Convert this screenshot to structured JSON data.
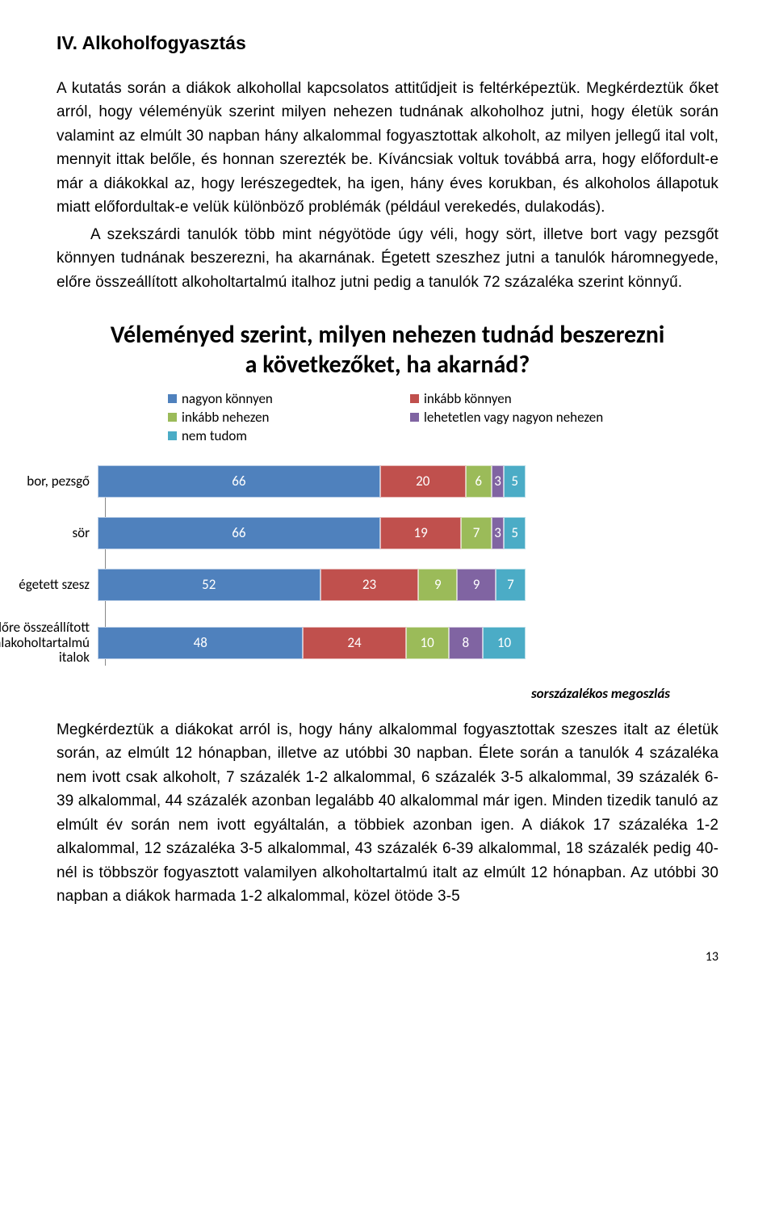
{
  "section_title": "IV. Alkoholfogyasztás",
  "paragraphs": {
    "p1": "A kutatás során a diákok alkohollal kapcsolatos attitűdjeit is feltérképeztük. Megkérdeztük őket arról, hogy véleményük szerint milyen nehezen tudnának alkoholhoz jutni, hogy életük során valamint az elmúlt 30 napban hány alkalommal fogyasztottak alkoholt, az milyen jellegű ital volt, mennyit ittak belőle, és honnan szerezték be. Kíváncsiak voltuk továbbá arra, hogy előfordult-e már a diákokkal az, hogy lerészegedtek, ha igen, hány éves korukban, és alkoholos állapotuk miatt előfordultak-e velük különböző problémák (például verekedés, dulakodás).",
    "p2": "A szekszárdi tanulók több mint négyötöde úgy véli, hogy sört, illetve bort vagy pezsgőt könnyen tudnának beszerezni, ha akarnának. Égetett szeszhez jutni a tanulók háromnegyede, előre összeállított alkoholtartalmú italhoz jutni pedig a tanulók 72 százaléka szerint könnyű.",
    "p3": "Megkérdeztük a diákokat arról is, hogy hány alkalommal fogyasztottak szeszes italt az életük során, az elmúlt 12 hónapban, illetve az utóbbi 30 napban. Élete során a tanulók 4 százaléka nem ivott csak alkoholt, 7 százalék 1-2 alkalommal, 6 százalék 3-5 alkalommal, 39 százalék 6-39 alkalommal, 44 százalék azonban legalább 40 alkalommal már igen. Minden tizedik tanuló az elmúlt év során nem ivott egyáltalán, a többiek azonban igen. A diákok 17 százaléka 1-2 alkalommal, 12 százaléka 3-5 alkalommal, 43 százalék 6-39 alkalommal, 18 százalék pedig 40-nél is többször fogyasztott valamilyen alkoholtartalmú italt az elmúlt 12 hónapban. Az utóbbi 30 napban a diákok harmada 1-2 alkalommal, közel ötöde 3-5"
  },
  "chart": {
    "type": "stacked-bar-horizontal",
    "title": "Véleményed szerint, milyen nehezen tudnád beszerezni a következőket, ha akarnád?",
    "legend": [
      {
        "label": "nagyon könnyen",
        "color": "#4f81bd"
      },
      {
        "label": "inkább könnyen",
        "color": "#c0504d"
      },
      {
        "label": "inkább nehezen",
        "color": "#9bbb59"
      },
      {
        "label": "lehetetlen vagy nagyon nehezen",
        "color": "#8064a2"
      },
      {
        "label": "nem tudom",
        "color": "#4bacc6"
      }
    ],
    "categories": [
      {
        "label": "bor, pezsgő",
        "values": [
          66,
          20,
          6,
          3,
          5
        ]
      },
      {
        "label": "sör",
        "values": [
          66,
          19,
          7,
          3,
          5
        ]
      },
      {
        "label": "égetett szesz",
        "values": [
          52,
          23,
          9,
          9,
          7
        ]
      },
      {
        "label": "előre összeállított alakoholtartalmú italok",
        "values": [
          48,
          24,
          10,
          8,
          10
        ]
      }
    ],
    "note": "sorszázalékos megoszlás"
  },
  "page_number": "13"
}
